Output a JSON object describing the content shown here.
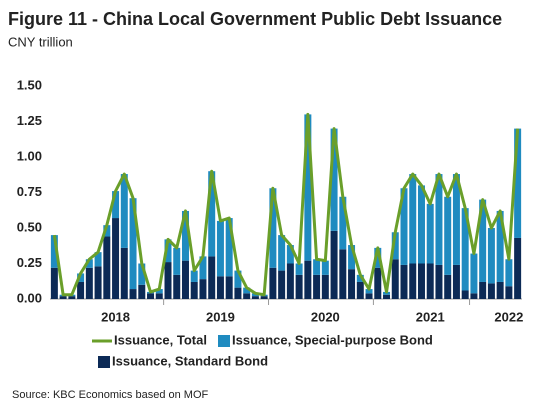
{
  "chart_data": {
    "type": "stacked-bar-line",
    "title": "Figure 11 - China Local Government Public Debt Issuance",
    "subtitle": "CNY trillion",
    "source": "Source: KBC Economics based on MOF",
    "categories": [
      null,
      null,
      null,
      null,
      null,
      null,
      null,
      "2018",
      null,
      null,
      null,
      null,
      null,
      null,
      null,
      null,
      null,
      null,
      null,
      "2019",
      null,
      null,
      null,
      null,
      null,
      null,
      null,
      null,
      null,
      null,
      null,
      "2020",
      null,
      null,
      null,
      null,
      null,
      null,
      null,
      null,
      null,
      null,
      null,
      "2021",
      null,
      null,
      null,
      null,
      null,
      null,
      null,
      null,
      "2022",
      null
    ],
    "ylim": [
      0,
      1.5
    ],
    "yticks": [
      {
        "value": 0,
        "label": "0.00"
      },
      {
        "value": 0.25,
        "label": "0.25"
      },
      {
        "value": 0.5,
        "label": "0.50"
      },
      {
        "value": 0.75,
        "label": "0.75"
      },
      {
        "value": 1,
        "label": "1.00"
      },
      {
        "value": 1.25,
        "label": "1.25"
      },
      {
        "value": 1.5,
        "label": "1.50"
      }
    ],
    "grid": false,
    "series": [
      {
        "name": "Issuance, Total",
        "kind": "line",
        "color": "#6a9f2a",
        "values": [
          0.45,
          0.03,
          0.03,
          0.18,
          0.28,
          0.33,
          0.52,
          0.76,
          0.88,
          0.71,
          0.25,
          0.05,
          0.07,
          0.42,
          0.36,
          0.62,
          0.2,
          0.3,
          0.9,
          0.55,
          0.57,
          0.2,
          0.08,
          0.04,
          0.03,
          0.78,
          0.45,
          0.38,
          0.25,
          1.3,
          0.28,
          0.27,
          1.2,
          0.72,
          0.38,
          0.17,
          0.07,
          0.36,
          0.05,
          0.47,
          0.78,
          0.88,
          0.8,
          0.67,
          0.88,
          0.72,
          0.88,
          0.64,
          0.32,
          0.7,
          0.5,
          0.62,
          0.28,
          1.2
        ]
      },
      {
        "name": "Issuance, Special-purpose Bond",
        "kind": "bar",
        "color": "#1f8bc0",
        "values": [
          0.23,
          0.01,
          0.01,
          0.06,
          0.06,
          0.1,
          0.08,
          0.19,
          0.52,
          0.64,
          0.15,
          0.01,
          0.03,
          0.16,
          0.19,
          0.35,
          0.08,
          0.16,
          0.6,
          0.39,
          0.41,
          0.12,
          0.04,
          0.02,
          0.01,
          0.56,
          0.25,
          0.13,
          0.08,
          1.03,
          0.11,
          0.1,
          0.72,
          0.37,
          0.17,
          0.05,
          0.03,
          0.14,
          0.02,
          0.19,
          0.54,
          0.63,
          0.55,
          0.42,
          0.64,
          0.55,
          0.64,
          0.58,
          0.28,
          0.58,
          0.39,
          0.5,
          0.19,
          0.77
        ]
      },
      {
        "name": "Issuance, Standard Bond",
        "kind": "bar",
        "color": "#0c2a56",
        "values": [
          0.22,
          0.02,
          0.02,
          0.12,
          0.22,
          0.23,
          0.44,
          0.57,
          0.36,
          0.07,
          0.1,
          0.04,
          0.04,
          0.26,
          0.17,
          0.27,
          0.12,
          0.14,
          0.3,
          0.16,
          0.16,
          0.08,
          0.04,
          0.02,
          0.02,
          0.22,
          0.2,
          0.25,
          0.17,
          0.27,
          0.17,
          0.17,
          0.48,
          0.35,
          0.21,
          0.12,
          0.04,
          0.22,
          0.03,
          0.28,
          0.24,
          0.25,
          0.25,
          0.25,
          0.24,
          0.17,
          0.24,
          0.06,
          0.04,
          0.12,
          0.11,
          0.12,
          0.09,
          0.43
        ]
      }
    ]
  }
}
